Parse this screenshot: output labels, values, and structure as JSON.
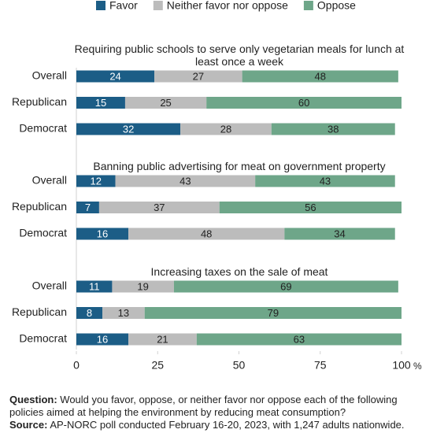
{
  "chart_data": [
    {
      "type": "bar",
      "orientation": "horizontal",
      "stacked": true,
      "title": "Requiring public schools to serve only vegetarian meals for lunch at least once a week",
      "categories": [
        "Overall",
        "Republican",
        "Democrat"
      ],
      "series": [
        {
          "name": "Favor",
          "color": "#1c5d86",
          "values": [
            24,
            15,
            32
          ]
        },
        {
          "name": "Neither favor nor oppose",
          "color": "#bcbcbc",
          "values": [
            27,
            25,
            28
          ]
        },
        {
          "name": "Oppose",
          "color": "#6ea689",
          "values": [
            48,
            60,
            38
          ]
        }
      ],
      "xlim": [
        0,
        100
      ]
    },
    {
      "type": "bar",
      "orientation": "horizontal",
      "stacked": true,
      "title": "Banning public advertising for meat on government property",
      "categories": [
        "Overall",
        "Republican",
        "Democrat"
      ],
      "series": [
        {
          "name": "Favor",
          "color": "#1c5d86",
          "values": [
            12,
            7,
            16
          ]
        },
        {
          "name": "Neither favor nor oppose",
          "color": "#bcbcbc",
          "values": [
            43,
            37,
            48
          ]
        },
        {
          "name": "Oppose",
          "color": "#6ea689",
          "values": [
            43,
            56,
            34
          ]
        }
      ],
      "xlim": [
        0,
        100
      ]
    },
    {
      "type": "bar",
      "orientation": "horizontal",
      "stacked": true,
      "title": "Increasing taxes on the sale of meat",
      "categories": [
        "Overall",
        "Republican",
        "Democrat"
      ],
      "series": [
        {
          "name": "Favor",
          "color": "#1c5d86",
          "values": [
            11,
            8,
            16
          ]
        },
        {
          "name": "Neither favor nor oppose",
          "color": "#bcbcbc",
          "values": [
            19,
            13,
            21
          ]
        },
        {
          "name": "Oppose",
          "color": "#6ea689",
          "values": [
            69,
            79,
            63
          ]
        }
      ],
      "xlim": [
        0,
        100
      ],
      "xticks": [
        0,
        25,
        50,
        75,
        100
      ],
      "xlabel": "%"
    }
  ],
  "notes": {
    "question_label": "Question:",
    "question": "Would you favor, oppose, or neither favor nor oppose each of the following policies aimed at helping the environment by reducing meat consumption?",
    "source_label": "Source:",
    "source": "AP-NORC poll conducted February 16-20, 2023, with 1,247 adults nationwide."
  }
}
